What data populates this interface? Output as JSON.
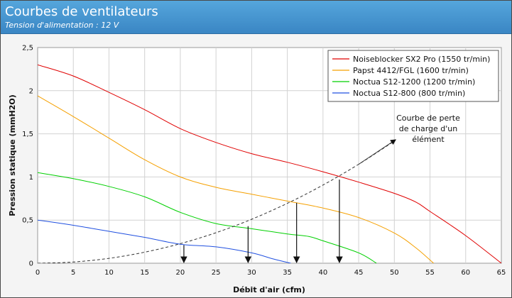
{
  "header": {
    "title": "Courbes de ventilateurs",
    "subtitle": "Tension d'alimentation : 12 V"
  },
  "chart_data": {
    "type": "line",
    "xlabel": "Débit d'air (cfm)",
    "ylabel": "Pression statique (mmH2O)",
    "xlim": [
      0,
      65
    ],
    "ylim": [
      0,
      2.5
    ],
    "x_ticks": [
      0,
      5,
      10,
      15,
      20,
      25,
      30,
      35,
      40,
      45,
      50,
      55,
      60,
      65
    ],
    "x_tick_labels": [
      "0",
      "5",
      "10",
      "15",
      "20",
      "25",
      "30",
      "35",
      "40",
      "45",
      "50",
      "55",
      "60",
      "65"
    ],
    "y_ticks": [
      0,
      0.5,
      1,
      1.5,
      2,
      2.5
    ],
    "y_tick_labels": [
      "0",
      "0,5",
      "1",
      "1,5",
      "2",
      "2,5"
    ],
    "grid": true,
    "legend_position": "top-right",
    "series": [
      {
        "name": "Noiseblocker SX2 Pro (1550 tr/min)",
        "color": "#e00000",
        "x": [
          0,
          5,
          10,
          15,
          20,
          25,
          30,
          35,
          40,
          45,
          50,
          53,
          55,
          60,
          65
        ],
        "y": [
          2.3,
          2.17,
          1.98,
          1.78,
          1.56,
          1.4,
          1.27,
          1.17,
          1.06,
          0.94,
          0.81,
          0.71,
          0.6,
          0.32,
          0.0
        ]
      },
      {
        "name": "Papst 4412/FGL (1600 tr/min)",
        "color": "#f5a000",
        "x": [
          0,
          5,
          10,
          15,
          20,
          25,
          30,
          35,
          40,
          45,
          50,
          53,
          55.5
        ],
        "y": [
          1.94,
          1.7,
          1.45,
          1.2,
          1.0,
          0.88,
          0.8,
          0.72,
          0.64,
          0.53,
          0.35,
          0.18,
          0.0
        ]
      },
      {
        "name": "Noctua S12-1200 (1200 tr/min)",
        "color": "#00d000",
        "x": [
          0,
          5,
          10,
          15,
          20,
          25,
          30,
          35,
          38,
          40,
          45,
          47.5
        ],
        "y": [
          1.05,
          0.98,
          0.89,
          0.77,
          0.59,
          0.46,
          0.4,
          0.34,
          0.31,
          0.26,
          0.12,
          0.0
        ]
      },
      {
        "name": "Noctua S12-800 (800 tr/min)",
        "color": "#2050e0",
        "x": [
          0,
          5,
          10,
          15,
          20,
          25,
          30,
          33,
          35.5
        ],
        "y": [
          0.5,
          0.44,
          0.37,
          0.3,
          0.22,
          0.19,
          0.12,
          0.05,
          0.0
        ]
      },
      {
        "name": "",
        "color": "#333333",
        "dashed": true,
        "x": [
          0,
          5,
          10,
          15,
          20,
          25,
          30,
          35,
          40,
          45,
          50
        ],
        "y": [
          0.0,
          0.014,
          0.057,
          0.128,
          0.227,
          0.354,
          0.51,
          0.694,
          0.906,
          1.147,
          1.416
        ]
      }
    ],
    "annotation": {
      "lines": [
        "Courbe de perte",
        "de charge d'un",
        "élément"
      ]
    },
    "operating_points": [
      {
        "x": 20.5,
        "y": 0.21
      },
      {
        "x": 29.5,
        "y": 0.43
      },
      {
        "x": 36.3,
        "y": 0.7
      },
      {
        "x": 42.3,
        "y": 0.97
      }
    ]
  }
}
